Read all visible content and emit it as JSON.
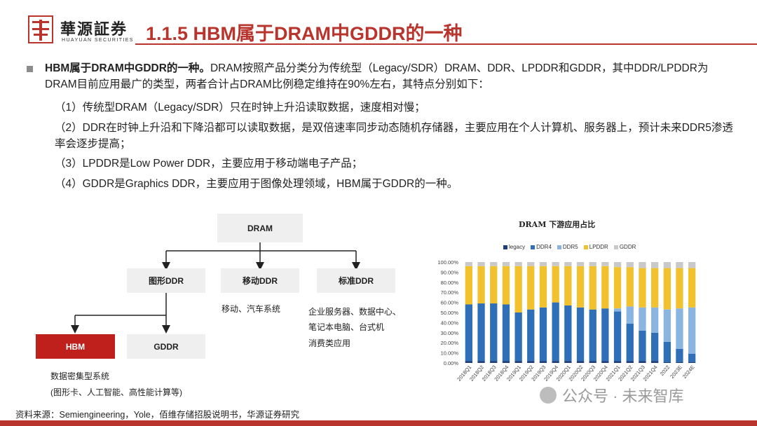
{
  "header": {
    "brand_cn": "華源証券",
    "brand_en": "HUAYUAN SECURITIES",
    "title": "1.1.5 HBM属于DRAM中GDDR的一种"
  },
  "body": {
    "lead_bold": "HBM属于DRAM中GDDR的一种。",
    "lead_rest": "DRAM按照产品分类分为传统型（Legacy/SDR）DRAM、DDR、LPDDR和GDDR，其中DDR/LPDDR为DRAM目前应用最广的类型，两者合计占DRAM比例稳定维持在90%左右，其特点分别如下：",
    "items": [
      "（1）传统型DRAM（Legacy/SDR）只在时钟上升沿读取数据，速度相对慢；",
      "（2）DDR在时钟上升沿和下降沿都可以读取数据，是双倍速率同步动态随机存储器，主要应用在个人计算机、服务器上，预计未来DDR5渗透率会逐步提高；",
      "（3）LPDDR是Low Power DDR，主要应用于移动端电子产品；",
      "（4）GDDR是Graphics DDR，主要应用于图像处理领域，HBM属于GDDR的一种。"
    ]
  },
  "diagram": {
    "root": "DRAM",
    "level2": [
      "图形DDR",
      "移动DDR",
      "标准DDR"
    ],
    "level3": [
      "HBM",
      "GDDR"
    ],
    "mobile_desc": "移动、汽车系统",
    "standard_desc": [
      "企业服务器、数据中心、",
      "笔记本电脑、台式机",
      "消费类应用"
    ],
    "hbm_desc": [
      "数据密集型系统",
      "(图形卡、人工智能、高性能计算等)"
    ]
  },
  "chart_data": {
    "type": "bar",
    "stacked": true,
    "title": "DRAM 下游应用占比",
    "legend_position": "top",
    "categories": [
      "2018Q1",
      "2018Q2",
      "2018Q3",
      "2018Q4",
      "2019Q1",
      "2019Q2",
      "2019Q3",
      "2019Q4",
      "2020Q1",
      "2020Q2",
      "2020Q3",
      "2020Q4",
      "2021Q1",
      "2021Q2",
      "2021Q3",
      "2021Q4",
      "2022",
      "2023E",
      "2024E"
    ],
    "ylim": [
      0,
      100
    ],
    "yticks": [
      "0.00%",
      "10.00%",
      "20.00%",
      "30.00%",
      "40.00%",
      "50.00%",
      "60.00%",
      "70.00%",
      "80.00%",
      "90.00%",
      "100.00%"
    ],
    "series": [
      {
        "name": "legacy",
        "color": "#1f3f7a",
        "values": [
          2,
          2,
          2,
          2,
          2,
          2,
          2,
          2,
          2,
          2,
          2,
          2,
          2,
          2,
          2,
          2,
          1,
          1,
          1
        ]
      },
      {
        "name": "DDR4",
        "color": "#2f6fb8",
        "values": [
          56,
          57,
          57,
          56,
          48,
          51,
          53,
          58,
          55,
          53,
          51,
          52,
          49,
          37,
          30,
          28,
          20,
          13,
          8
        ]
      },
      {
        "name": "DDR5",
        "color": "#8ab5e0",
        "values": [
          0,
          0,
          0,
          0,
          0,
          0,
          0,
          0,
          0,
          0,
          0,
          0,
          3,
          17,
          23,
          25,
          32,
          40,
          46
        ]
      },
      {
        "name": "LPDDR",
        "color": "#f2c12e",
        "values": [
          38,
          37,
          37,
          38,
          46,
          43,
          41,
          36,
          39,
          41,
          43,
          42,
          41,
          39,
          39,
          39,
          41,
          40,
          39
        ]
      },
      {
        "name": "GDDR",
        "color": "#c9c9c9",
        "values": [
          4,
          4,
          4,
          4,
          4,
          4,
          4,
          4,
          4,
          4,
          4,
          4,
          5,
          5,
          6,
          6,
          6,
          6,
          6
        ]
      }
    ]
  },
  "footer": {
    "source": "资料来源：Semiengineering，Yole，佰维存储招股说明书，华源证券研究",
    "watermark": "公众号 · 未来智库"
  }
}
